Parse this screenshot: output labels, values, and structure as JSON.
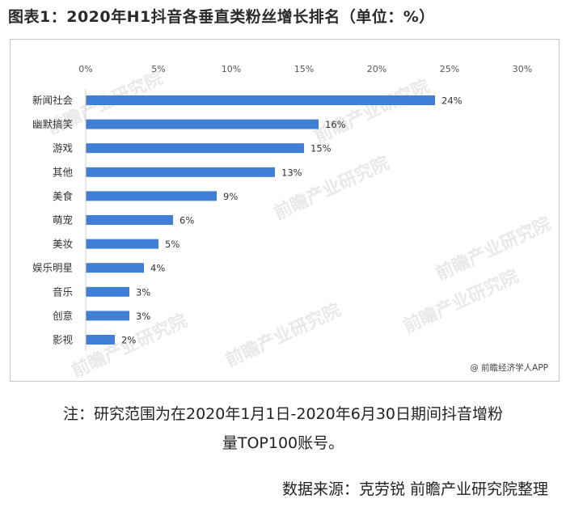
{
  "title": "图表1：2020年H1抖音各垂直类粉丝增长排名（单位：%）",
  "chart_data": {
    "type": "bar",
    "orientation": "horizontal",
    "categories": [
      "新闻社会",
      "幽默搞笑",
      "游戏",
      "其他",
      "美食",
      "萌宠",
      "美妆",
      "娱乐明星",
      "音乐",
      "创意",
      "影视"
    ],
    "values": [
      24,
      16,
      15,
      13,
      9,
      6,
      5,
      4,
      3,
      3,
      2
    ],
    "value_labels": [
      "24%",
      "16%",
      "15%",
      "13%",
      "9%",
      "6%",
      "5%",
      "4%",
      "3%",
      "3%",
      "2%"
    ],
    "xlim": [
      0,
      30
    ],
    "x_ticks": [
      0,
      5,
      10,
      15,
      20,
      25,
      30
    ],
    "x_tick_labels": [
      "0%",
      "5%",
      "10%",
      "15%",
      "20%",
      "25%",
      "30%"
    ],
    "x_axis_position": "top",
    "grid": false,
    "legend": "none",
    "bar_color": "#3f7fd6"
  },
  "credit": "@ 前瞻经济学人APP",
  "watermark": "前瞻产业研究院",
  "note_line1": "注：研究范围为在2020年1月1日-2020年6月30日期间抖音增粉",
  "note_line2": "量TOP100账号。",
  "source": "数据来源：克劳锐  前瞻产业研究院整理"
}
